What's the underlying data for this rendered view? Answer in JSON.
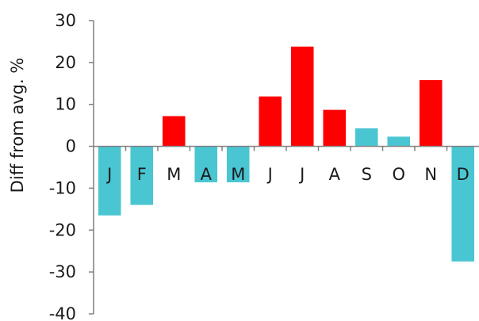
{
  "chart_data": {
    "type": "bar",
    "title": "",
    "xlabel": "",
    "ylabel": "Diff from avg. %",
    "ylim": [
      -40,
      30
    ],
    "yticks": [
      30,
      20,
      10,
      0,
      -10,
      -20,
      -30,
      -40
    ],
    "categories": [
      "J",
      "F",
      "M",
      "A",
      "M",
      "J",
      "J",
      "A",
      "S",
      "O",
      "N",
      "D"
    ],
    "values": [
      -16.5,
      -14,
      7.2,
      -8.6,
      -8.6,
      11.9,
      23.8,
      8.7,
      4.3,
      2.3,
      15.8,
      -27.5
    ],
    "grid": false,
    "legend": "none",
    "colors": {
      "positive": "#ff0000",
      "negative": "#4ac6d2",
      "axis": "#7f7f7f",
      "text": "#1a1a1a"
    },
    "series": [
      {
        "values": [
          -16.5,
          -14,
          7.2,
          -8.6,
          -8.6,
          11.9,
          23.8,
          8.7,
          4.3,
          2.3,
          15.8,
          -27.5
        ],
        "colors": [
          "#4ac6d2",
          "#4ac6d2",
          "#ff0000",
          "#4ac6d2",
          "#4ac6d2",
          "#ff0000",
          "#ff0000",
          "#ff0000",
          "#4ac6d2",
          "#4ac6d2",
          "#ff0000",
          "#4ac6d2"
        ]
      }
    ]
  }
}
